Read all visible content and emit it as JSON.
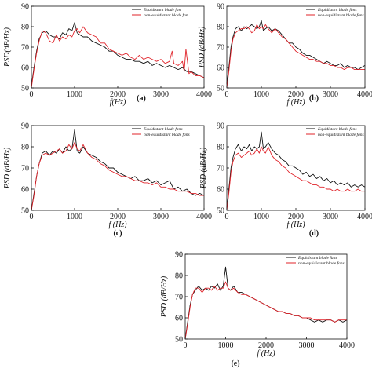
{
  "chart_data": [
    {
      "id": "a",
      "panel_label": "(a)",
      "type": "line",
      "xlabel": "f(Hz)",
      "ylabel": "PSD(dB/Hz)",
      "xlim": [
        0,
        4000
      ],
      "ylim": [
        50,
        90
      ],
      "xticks": [
        0,
        1000,
        2000,
        3000,
        4000
      ],
      "yticks": [
        50,
        60,
        70,
        80,
        90
      ],
      "legend_position": "top-right",
      "series": [
        {
          "name": "Equidistant blade fan",
          "color": "#111111",
          "x": [
            0,
            60,
            120,
            180,
            250,
            330,
            420,
            500,
            580,
            650,
            720,
            800,
            870,
            940,
            1000,
            1060,
            1120,
            1200,
            1300,
            1400,
            1500,
            1600,
            1700,
            1800,
            1900,
            2000,
            2100,
            2200,
            2300,
            2400,
            2500,
            2600,
            2700,
            2800,
            2900,
            3000,
            3100,
            3200,
            3300,
            3400,
            3500,
            3600,
            3700,
            3800,
            3900,
            4000
          ],
          "y": [
            51,
            60,
            68,
            74,
            77,
            78,
            76,
            75,
            75,
            74,
            77,
            76,
            79,
            78,
            82,
            77,
            76,
            75,
            75,
            73,
            72,
            71,
            70,
            68,
            68,
            66,
            65,
            64,
            64,
            63,
            63,
            62,
            63,
            61,
            62,
            61,
            60,
            61,
            60,
            59,
            60,
            58,
            58,
            57,
            56,
            55
          ]
        },
        {
          "name": "non-equidistant blade fan",
          "color": "#e0232a",
          "x": [
            0,
            60,
            120,
            180,
            250,
            330,
            420,
            500,
            580,
            650,
            720,
            800,
            870,
            940,
            1000,
            1060,
            1120,
            1200,
            1300,
            1400,
            1500,
            1600,
            1700,
            1800,
            1900,
            2000,
            2100,
            2200,
            2300,
            2400,
            2500,
            2600,
            2700,
            2800,
            2900,
            3000,
            3100,
            3200,
            3260,
            3300,
            3400,
            3500,
            3540,
            3580,
            3650,
            3700,
            3800,
            3900,
            4000
          ],
          "y": [
            50,
            59,
            67,
            73,
            78,
            77,
            73,
            72,
            76,
            73,
            75,
            74,
            76,
            75,
            78,
            79,
            77,
            80,
            77,
            76,
            75,
            72,
            72,
            69,
            68,
            67,
            66,
            67,
            65,
            64,
            66,
            64,
            65,
            64,
            63,
            64,
            62,
            63,
            68,
            62,
            61,
            63,
            58,
            69,
            57,
            58,
            56,
            56,
            55
          ]
        }
      ]
    },
    {
      "id": "b",
      "panel_label": "(b)",
      "type": "line",
      "xlabel": "f (Hz)",
      "ylabel": "PSD (dB/Hz)",
      "xlim": [
        0,
        4000
      ],
      "ylim": [
        50,
        90
      ],
      "xticks": [
        0,
        1000,
        2000,
        3000,
        4000
      ],
      "yticks": [
        50,
        60,
        70,
        80,
        90
      ],
      "legend_position": "top-right",
      "series": [
        {
          "name": "Equidistant blade fans",
          "color": "#111111",
          "x": [
            0,
            60,
            120,
            180,
            250,
            330,
            420,
            500,
            580,
            650,
            720,
            800,
            870,
            940,
            1000,
            1060,
            1120,
            1200,
            1300,
            1400,
            1500,
            1600,
            1700,
            1800,
            1900,
            2000,
            2100,
            2200,
            2300,
            2400,
            2500,
            2600,
            2700,
            2800,
            2900,
            3000,
            3100,
            3200,
            3300,
            3400,
            3500,
            3600,
            3700,
            3800,
            3900,
            4000
          ],
          "y": [
            52,
            60,
            70,
            75,
            79,
            80,
            78,
            80,
            79,
            80,
            81,
            80,
            79,
            80,
            83,
            78,
            79,
            80,
            78,
            79,
            78,
            76,
            74,
            72,
            72,
            70,
            69,
            67,
            66,
            66,
            65,
            64,
            63,
            62,
            63,
            62,
            61,
            61,
            62,
            60,
            61,
            60,
            60,
            59,
            60,
            61
          ]
        },
        {
          "name": "non-equidistant blade fans",
          "color": "#e0232a",
          "x": [
            0,
            60,
            120,
            180,
            250,
            330,
            420,
            500,
            580,
            650,
            720,
            800,
            870,
            940,
            1000,
            1060,
            1120,
            1200,
            1300,
            1400,
            1500,
            1600,
            1700,
            1800,
            1900,
            2000,
            2100,
            2200,
            2300,
            2400,
            2500,
            2600,
            2700,
            2800,
            2900,
            3000,
            3100,
            3200,
            3300,
            3400,
            3500,
            3600,
            3700,
            3800,
            3900,
            4000
          ],
          "y": [
            50,
            58,
            68,
            74,
            77,
            78,
            79,
            79,
            80,
            79,
            77,
            78,
            81,
            79,
            80,
            79,
            81,
            79,
            77,
            79,
            77,
            75,
            74,
            72,
            70,
            68,
            67,
            66,
            65,
            64,
            64,
            63,
            63,
            62,
            62,
            61,
            61,
            60,
            60,
            59,
            60,
            60,
            59,
            59,
            59,
            59
          ]
        }
      ]
    },
    {
      "id": "c",
      "panel_label": "(c)",
      "type": "line",
      "xlabel": "f (Hz)",
      "ylabel": "PSD (dB/Hz)",
      "xlim": [
        0,
        4000
      ],
      "ylim": [
        50,
        90
      ],
      "xticks": [
        0,
        1000,
        2000,
        3000,
        4000
      ],
      "yticks": [
        50,
        60,
        70,
        80,
        90
      ],
      "legend_position": "top-right",
      "series": [
        {
          "name": "Equidistant blade fans",
          "color": "#111111",
          "x": [
            0,
            60,
            120,
            180,
            250,
            330,
            420,
            500,
            580,
            650,
            720,
            800,
            870,
            940,
            1000,
            1060,
            1120,
            1200,
            1300,
            1400,
            1500,
            1600,
            1700,
            1800,
            1900,
            2000,
            2100,
            2200,
            2300,
            2400,
            2500,
            2600,
            2700,
            2800,
            2900,
            3000,
            3100,
            3200,
            3300,
            3400,
            3500,
            3600,
            3700,
            3800,
            3900,
            4000
          ],
          "y": [
            50,
            58,
            66,
            72,
            77,
            78,
            76,
            78,
            77,
            79,
            77,
            80,
            78,
            79,
            88,
            78,
            77,
            80,
            77,
            76,
            75,
            73,
            72,
            70,
            70,
            68,
            67,
            66,
            65,
            66,
            64,
            64,
            65,
            63,
            64,
            62,
            63,
            64,
            60,
            61,
            59,
            60,
            58,
            57,
            58,
            57
          ]
        },
        {
          "name": "non-equidistant blade fans",
          "color": "#e0232a",
          "x": [
            0,
            60,
            120,
            180,
            250,
            330,
            420,
            500,
            580,
            650,
            720,
            800,
            870,
            940,
            1000,
            1060,
            1120,
            1200,
            1300,
            1400,
            1500,
            1600,
            1700,
            1800,
            1900,
            2000,
            2100,
            2200,
            2300,
            2400,
            2500,
            2600,
            2700,
            2800,
            2900,
            3000,
            3100,
            3200,
            3300,
            3400,
            3500,
            3600,
            3700,
            3800,
            3900,
            4000
          ],
          "y": [
            50,
            57,
            66,
            72,
            76,
            77,
            76,
            77,
            78,
            79,
            77,
            78,
            81,
            79,
            82,
            79,
            78,
            81,
            77,
            75,
            74,
            72,
            71,
            69,
            68,
            67,
            66,
            66,
            65,
            64,
            64,
            63,
            63,
            62,
            63,
            61,
            61,
            60,
            60,
            59,
            59,
            59,
            58,
            58,
            57,
            57
          ]
        }
      ]
    },
    {
      "id": "d",
      "panel_label": "(d)",
      "type": "line",
      "xlabel": "f (Hz)",
      "ylabel": "PSD (dB/Hz)",
      "xlim": [
        0,
        4000
      ],
      "ylim": [
        50,
        90
      ],
      "xticks": [
        0,
        1000,
        2000,
        3000,
        4000
      ],
      "yticks": [
        50,
        60,
        70,
        80,
        90
      ],
      "legend_position": "top-right",
      "series": [
        {
          "name": "Equidistant blade fans",
          "color": "#111111",
          "x": [
            0,
            60,
            120,
            180,
            250,
            330,
            420,
            500,
            580,
            650,
            720,
            800,
            870,
            940,
            1000,
            1060,
            1120,
            1200,
            1300,
            1400,
            1500,
            1600,
            1700,
            1800,
            1900,
            2000,
            2100,
            2200,
            2300,
            2400,
            2500,
            2600,
            2700,
            2800,
            2900,
            3000,
            3100,
            3200,
            3300,
            3400,
            3500,
            3600,
            3700,
            3800,
            3900,
            4000
          ],
          "y": [
            51,
            60,
            70,
            75,
            79,
            81,
            78,
            80,
            79,
            81,
            78,
            80,
            79,
            80,
            87,
            79,
            80,
            82,
            79,
            77,
            76,
            74,
            73,
            71,
            71,
            70,
            69,
            67,
            68,
            66,
            67,
            65,
            66,
            64,
            65,
            63,
            64,
            62,
            63,
            62,
            63,
            61,
            62,
            61,
            62,
            61
          ]
        },
        {
          "name": "non-equidistant blade fans",
          "color": "#e0232a",
          "x": [
            0,
            60,
            120,
            180,
            250,
            330,
            420,
            500,
            580,
            650,
            720,
            800,
            870,
            940,
            1000,
            1060,
            1120,
            1200,
            1300,
            1400,
            1500,
            1600,
            1700,
            1800,
            1900,
            2000,
            2100,
            2200,
            2300,
            2400,
            2500,
            2600,
            2700,
            2800,
            2900,
            3000,
            3100,
            3200,
            3300,
            3400,
            3500,
            3600,
            3700,
            3800,
            3900,
            4000
          ],
          "y": [
            50,
            58,
            68,
            73,
            76,
            77,
            75,
            76,
            77,
            78,
            76,
            77,
            79,
            77,
            80,
            78,
            77,
            80,
            76,
            74,
            73,
            71,
            70,
            68,
            67,
            66,
            65,
            64,
            64,
            63,
            62,
            62,
            61,
            61,
            60,
            60,
            59,
            60,
            59,
            59,
            60,
            59,
            59,
            60,
            59,
            59
          ]
        }
      ]
    },
    {
      "id": "e",
      "panel_label": "(e)",
      "type": "line",
      "xlabel": "f (Hz)",
      "ylabel": "PSD (dB/Hz)",
      "xlim": [
        0,
        4000
      ],
      "ylim": [
        50,
        90
      ],
      "xticks": [
        0,
        1000,
        2000,
        3000,
        4000
      ],
      "yticks": [
        50,
        60,
        70,
        80,
        90
      ],
      "legend_position": "top-right",
      "series": [
        {
          "name": "Equidistant blade fans",
          "color": "#111111",
          "x": [
            0,
            60,
            120,
            180,
            250,
            330,
            420,
            500,
            580,
            650,
            720,
            800,
            870,
            940,
            1000,
            1060,
            1120,
            1200,
            1300,
            1400,
            1500,
            1600,
            1700,
            1800,
            1900,
            2000,
            2100,
            2200,
            2300,
            2400,
            2500,
            2600,
            2700,
            2800,
            2900,
            3000,
            3100,
            3200,
            3300,
            3400,
            3500,
            3600,
            3700,
            3800,
            3900,
            4000
          ],
          "y": [
            50,
            58,
            66,
            71,
            73,
            75,
            73,
            74,
            73,
            75,
            74,
            76,
            73,
            75,
            84,
            74,
            73,
            75,
            72,
            72,
            71,
            70,
            69,
            68,
            67,
            66,
            65,
            64,
            63,
            63,
            62,
            62,
            61,
            61,
            60,
            60,
            59,
            58,
            59,
            58,
            59,
            59,
            58,
            59,
            58,
            59
          ]
        },
        {
          "name": "non-equidistant blade fans",
          "color": "#e0232a",
          "x": [
            0,
            60,
            120,
            180,
            250,
            330,
            420,
            500,
            580,
            650,
            720,
            800,
            870,
            940,
            1000,
            1060,
            1120,
            1200,
            1300,
            1400,
            1500,
            1600,
            1700,
            1800,
            1900,
            2000,
            2100,
            2200,
            2300,
            2400,
            2500,
            2600,
            2700,
            2800,
            2900,
            3000,
            3100,
            3200,
            3300,
            3400,
            3500,
            3600,
            3700,
            3800,
            3900,
            4000
          ],
          "y": [
            50,
            57,
            65,
            71,
            74,
            74,
            72,
            74,
            74,
            73,
            75,
            73,
            74,
            74,
            77,
            74,
            73,
            74,
            72,
            71,
            71,
            70,
            69,
            68,
            67,
            66,
            65,
            64,
            63,
            63,
            62,
            62,
            61,
            61,
            60,
            60,
            60,
            59,
            59,
            59,
            59,
            59,
            58,
            59,
            59,
            59
          ]
        }
      ]
    }
  ]
}
